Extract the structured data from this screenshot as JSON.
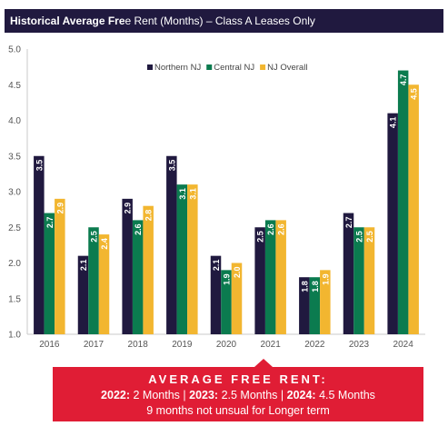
{
  "header": {
    "title_bold": "Historical Average Fre",
    "title_rest": "e Rent (Months) – Class A Leases Only"
  },
  "chart_data": {
    "type": "bar",
    "categories": [
      "2016",
      "2017",
      "2018",
      "2019",
      "2020",
      "2021",
      "2022",
      "2023",
      "2024"
    ],
    "series": [
      {
        "name": "Northern NJ",
        "color": "#20193f",
        "values": [
          3.5,
          2.1,
          2.9,
          3.5,
          2.1,
          2.5,
          1.8,
          2.7,
          4.1
        ],
        "labels": [
          "3.5",
          "2.1",
          "2.9",
          "3.5",
          "2.1",
          "2.5",
          "1.8",
          "2.7",
          "4.1"
        ]
      },
      {
        "name": "Central NJ",
        "color": "#0b7b4f",
        "values": [
          2.7,
          2.5,
          2.6,
          3.1,
          1.9,
          2.6,
          1.8,
          2.5,
          4.7
        ],
        "labels": [
          "2.7",
          "2.5",
          "2.6",
          "3.1",
          "1.9",
          "2.6",
          "1.8",
          "2.5",
          "4.7"
        ]
      },
      {
        "name": "NJ Overall",
        "color": "#f2b630",
        "values": [
          2.9,
          2.4,
          2.8,
          3.1,
          2.0,
          2.6,
          1.9,
          2.5,
          4.5
        ],
        "labels": [
          "2.9",
          "2.4",
          "2.8",
          "3.1",
          "2.0",
          "2.6",
          "1.9",
          "2.5",
          "4.5"
        ]
      }
    ],
    "ylim": [
      1.0,
      5.0
    ],
    "yticks": [
      "1.0",
      "1.5",
      "2.0",
      "2.5",
      "3.0",
      "3.5",
      "4.0",
      "4.5",
      "5.0"
    ],
    "ytick_values": [
      1.0,
      1.5,
      2.0,
      2.5,
      3.0,
      3.5,
      4.0,
      4.5,
      5.0
    ],
    "grid": false,
    "legend": "top-center",
    "xlabel": "",
    "ylabel": ""
  },
  "callout": {
    "heading": "AVERAGE FREE RENT:",
    "y2022": "2022:",
    "v2022": " 2 Months | ",
    "y2023": "2023:",
    "v2023": " 2.5 Months | ",
    "y2024": "2024:",
    "v2024": " 4.5 Months",
    "note": "9 months not unsual for Longer term"
  }
}
